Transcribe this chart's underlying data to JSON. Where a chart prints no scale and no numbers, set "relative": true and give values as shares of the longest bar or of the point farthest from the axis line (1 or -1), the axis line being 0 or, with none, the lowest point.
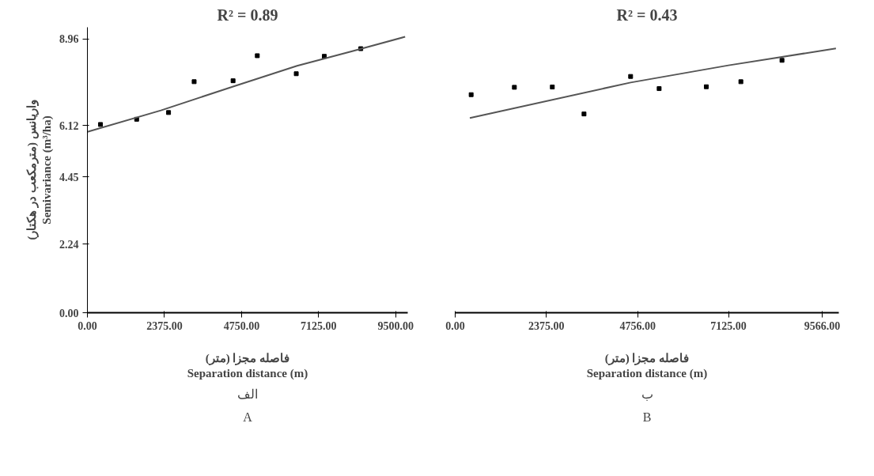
{
  "chart_data": [
    {
      "type": "scatter",
      "title": "R² = 0.89",
      "xlabel": "فاصله مجزا (متر)\nSeparation distance (m)",
      "ylabel": "واریانس (مترمکعب در هکتار)\nSemivariance (m³/ha)",
      "xlim": [
        0,
        9870
      ],
      "ylim": [
        0,
        9.34
      ],
      "xticks": [
        {
          "value": 0,
          "label": "0.00"
        },
        {
          "value": 2375,
          "label": "2375.00"
        },
        {
          "value": 4750,
          "label": "4750.00"
        },
        {
          "value": 7125,
          "label": "7125.00"
        },
        {
          "value": 9500,
          "label": "9500.00"
        }
      ],
      "yticks": [
        {
          "value": 0,
          "label": "0.00"
        },
        2.24,
        4.45,
        6.12,
        8.96
      ],
      "grid": false,
      "annotations": [
        "الف",
        "A"
      ],
      "series": [
        {
          "marker": "square",
          "color": "#000000",
          "x": [
            403,
            1518,
            2500,
            3289,
            4488,
            5235,
            6435,
            7299,
            8423
          ],
          "values": [
            6.16,
            6.33,
            6.55,
            7.56,
            7.59,
            8.41,
            7.82,
            8.39,
            8.64
          ]
        },
        {
          "type": "line",
          "color": "#555555",
          "x": [
            0,
            2265,
            4488,
            6460,
            8138,
            9790
          ],
          "values": [
            5.92,
            6.62,
            7.4,
            8.08,
            8.55,
            9.03
          ]
        }
      ]
    },
    {
      "type": "scatter",
      "title": "R² = 0.43",
      "xlabel": "فاصله مجزا (متر)\nSeparation distance (m)",
      "xlim": [
        0,
        10000
      ],
      "relative": true,
      "tick_labels": "x",
      "xticks": [
        {
          "value": 0,
          "label": "0.00"
        },
        {
          "value": 2375,
          "label": "2375.00"
        },
        {
          "value": 4756,
          "label": "4756.00"
        },
        {
          "value": 7125,
          "label": "7125.00"
        },
        {
          "value": 9566,
          "label": "9566.00"
        }
      ],
      "grid": false,
      "annotations": [
        "ب",
        "B"
      ],
      "series": [
        {
          "marker": "square",
          "color": "#000000",
          "x": [
            416,
            1543,
            2532,
            3358,
            4573,
            5317,
            6546,
            7447,
            8519
          ],
          "values": [
            0.825,
            0.853,
            0.854,
            0.752,
            0.894,
            0.848,
            0.855,
            0.874,
            0.955
          ]
        },
        {
          "type": "line",
          "color": "#555555",
          "x": [
            382,
            4573,
            7125,
            9925
          ],
          "values": [
            0.737,
            0.871,
            0.936,
            1.0
          ]
        }
      ]
    }
  ]
}
